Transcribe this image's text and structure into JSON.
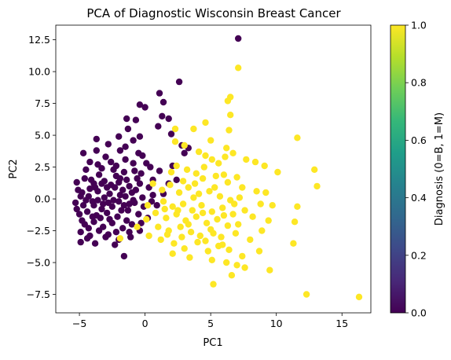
{
  "chart_data": {
    "type": "scatter",
    "title": "PCA of Diagnostic Wisconsin Breast Cancer",
    "xlabel": "PC1",
    "ylabel": "PC2",
    "xlim": [
      -6.8,
      17.2
    ],
    "ylim": [
      -8.95,
      13.65
    ],
    "xticks": [
      -5,
      0,
      5,
      10,
      15
    ],
    "xtick_labels": [
      "−5",
      "0",
      "5",
      "10",
      "15"
    ],
    "yticks": [
      -7.5,
      -5.0,
      -2.5,
      0.0,
      2.5,
      5.0,
      7.5,
      10.0,
      12.5
    ],
    "ytick_labels": [
      "−7.5",
      "−5.0",
      "−2.5",
      "0.0",
      "2.5",
      "5.0",
      "7.5",
      "10.0",
      "12.5"
    ],
    "grid": false,
    "colorbar": {
      "label": "Diagnosis (0=B, 1=M)",
      "range": [
        0.0,
        1.0
      ],
      "ticks": [
        0.0,
        0.2,
        0.4,
        0.6,
        0.8,
        1.0
      ],
      "tick_labels": [
        "0.0",
        "0.2",
        "0.4",
        "0.6",
        "0.8",
        "1.0"
      ],
      "colormap": "viridis",
      "stops": [
        "#440154",
        "#482878",
        "#3e4989",
        "#31688e",
        "#26828e",
        "#1f9e89",
        "#35b779",
        "#6ece58",
        "#b5de2b",
        "#fde725"
      ]
    },
    "series": [
      {
        "class": 0,
        "color": "#440154",
        "points": [
          [
            7.1,
            12.6
          ],
          [
            2.6,
            9.2
          ],
          [
            1.1,
            8.3
          ],
          [
            -0.4,
            7.4
          ],
          [
            0.0,
            7.2
          ],
          [
            1.4,
            7.6
          ],
          [
            1.3,
            6.5
          ],
          [
            1.8,
            6.3
          ],
          [
            -1.4,
            6.3
          ],
          [
            -0.7,
            6.2
          ],
          [
            1.0,
            5.7
          ],
          [
            2.0,
            5.1
          ],
          [
            -1.3,
            5.5
          ],
          [
            -2.0,
            4.9
          ],
          [
            -0.4,
            4.9
          ],
          [
            -0.9,
            4.6
          ],
          [
            -1.5,
            4.1
          ],
          [
            -2.8,
            4.3
          ],
          [
            -3.7,
            4.7
          ],
          [
            -3.7,
            3.8
          ],
          [
            -1.9,
            3.8
          ],
          [
            -1.5,
            3.1
          ],
          [
            -0.2,
            3.4
          ],
          [
            -0.9,
            2.8
          ],
          [
            -2.6,
            2.9
          ],
          [
            -3.0,
            3.3
          ],
          [
            -4.7,
            3.6
          ],
          [
            -4.2,
            2.9
          ],
          [
            -4.5,
            2.3
          ],
          [
            -3.3,
            2.4
          ],
          [
            -2.4,
            2.3
          ],
          [
            -1.6,
            2.1
          ],
          [
            -0.8,
            2.2
          ],
          [
            -0.3,
            2.0
          ],
          [
            0.4,
            2.5
          ],
          [
            0.6,
            1.5
          ],
          [
            1.1,
            2.2
          ],
          [
            2.1,
            2.6
          ],
          [
            2.4,
            1.5
          ],
          [
            2.8,
            4.2
          ],
          [
            3.0,
            3.6
          ],
          [
            3.3,
            4.0
          ],
          [
            -5.2,
            1.3
          ],
          [
            -5.1,
            0.7
          ],
          [
            -4.6,
            1.6
          ],
          [
            -3.9,
            1.2
          ],
          [
            -3.1,
            1.4
          ],
          [
            -2.0,
            1.3
          ],
          [
            -1.2,
            1.0
          ],
          [
            -0.4,
            1.2
          ],
          [
            0.3,
            0.9
          ],
          [
            -4.8,
            0.5
          ],
          [
            -4.3,
            0.2
          ],
          [
            -3.6,
            0.6
          ],
          [
            -2.7,
            0.4
          ],
          [
            -1.9,
            0.3
          ],
          [
            -1.0,
            0.5
          ],
          [
            -0.2,
            0.1
          ],
          [
            0.6,
            0.3
          ],
          [
            -5.3,
            -0.3
          ],
          [
            -4.7,
            -0.5
          ],
          [
            -4.0,
            -0.2
          ],
          [
            -3.2,
            -0.4
          ],
          [
            -2.4,
            -0.1
          ],
          [
            -1.6,
            -0.5
          ],
          [
            -0.8,
            -0.3
          ],
          [
            -0.1,
            -0.6
          ],
          [
            0.5,
            -0.2
          ],
          [
            -5.0,
            -1.2
          ],
          [
            -4.4,
            -1.0
          ],
          [
            -3.7,
            -1.3
          ],
          [
            -2.9,
            -1.1
          ],
          [
            -2.1,
            -1.4
          ],
          [
            -1.3,
            -0.9
          ],
          [
            -0.5,
            -1.2
          ],
          [
            0.2,
            -1.5
          ],
          [
            -4.6,
            -2.0
          ],
          [
            -3.9,
            -1.8
          ],
          [
            -3.2,
            -2.2
          ],
          [
            -2.5,
            -1.9
          ],
          [
            -1.7,
            -2.3
          ],
          [
            -1.0,
            -2.0
          ],
          [
            -4.9,
            -2.6
          ],
          [
            -4.2,
            -2.9
          ],
          [
            -3.5,
            -2.5
          ],
          [
            -2.8,
            -2.8
          ],
          [
            -2.0,
            -3.2
          ],
          [
            -1.2,
            -2.6
          ],
          [
            -4.9,
            -3.4
          ],
          [
            -4.4,
            -3.1
          ],
          [
            -3.8,
            -3.5
          ],
          [
            -2.3,
            -3.6
          ],
          [
            -1.6,
            -4.5
          ],
          [
            -5.2,
            -0.8
          ],
          [
            -3.5,
            1.9
          ],
          [
            -2.2,
            1.8
          ],
          [
            -1.4,
            1.5
          ],
          [
            -0.6,
            1.6
          ],
          [
            -4.1,
            1.5
          ],
          [
            -2.9,
            0.9
          ],
          [
            -1.7,
            0.7
          ],
          [
            -0.9,
            -0.1
          ],
          [
            -4.5,
            -0.1
          ],
          [
            -3.3,
            -0.8
          ],
          [
            -2.5,
            -0.6
          ],
          [
            -1.8,
            -0.9
          ],
          [
            -3.9,
            -0.5
          ],
          [
            -2.7,
            -1.6
          ],
          [
            -4.3,
            -2.3
          ],
          [
            -3.0,
            -3.0
          ],
          [
            -1.4,
            -1.7
          ],
          [
            -0.3,
            -1.9
          ],
          [
            0.9,
            -0.5
          ],
          [
            1.4,
            0.4
          ],
          [
            1.8,
            1.2
          ],
          [
            0.1,
            2.8
          ],
          [
            -0.5,
            3.6
          ],
          [
            -2.2,
            2.6
          ],
          [
            -3.6,
            2.7
          ],
          [
            -4.0,
            -1.4
          ],
          [
            -4.8,
            -1.7
          ],
          [
            -3.4,
            -1.5
          ],
          [
            -2.2,
            -2.6
          ],
          [
            -1.1,
            -3.0
          ],
          [
            -0.4,
            -2.5
          ],
          [
            -3.1,
            0.1
          ],
          [
            -2.3,
            0.9
          ],
          [
            -1.5,
            0.2
          ],
          [
            -0.7,
            0.7
          ],
          [
            -3.8,
            0.9
          ],
          [
            -4.9,
            0.2
          ],
          [
            -2.8,
            -0.3
          ],
          [
            -2.0,
            -0.2
          ],
          [
            -1.2,
            -0.4
          ],
          [
            -3.6,
            -0.1
          ],
          [
            -2.6,
            1.1
          ],
          [
            -1.9,
            1.6
          ],
          [
            -3.3,
            1.2
          ],
          [
            -4.2,
            0.8
          ]
        ]
      },
      {
        "class": 1,
        "color": "#fde725",
        "points": [
          [
            7.1,
            10.3
          ],
          [
            6.5,
            8.0
          ],
          [
            6.3,
            7.7
          ],
          [
            4.6,
            6.0
          ],
          [
            6.5,
            6.6
          ],
          [
            6.4,
            5.4
          ],
          [
            2.3,
            5.5
          ],
          [
            3.7,
            5.5
          ],
          [
            2.3,
            4.5
          ],
          [
            6.2,
            4.0
          ],
          [
            6.7,
            3.6
          ],
          [
            11.6,
            4.8
          ],
          [
            5.0,
            4.6
          ],
          [
            3.0,
            4.2
          ],
          [
            4.1,
            3.7
          ],
          [
            4.6,
            3.4
          ],
          [
            5.1,
            3.1
          ],
          [
            5.6,
            2.8
          ],
          [
            6.1,
            3.3
          ],
          [
            7.7,
            3.1
          ],
          [
            8.4,
            2.9
          ],
          [
            9.1,
            2.6
          ],
          [
            10.1,
            2.1
          ],
          [
            12.9,
            2.3
          ],
          [
            13.1,
            1.0
          ],
          [
            2.4,
            2.6
          ],
          [
            3.2,
            2.3
          ],
          [
            3.9,
            2.0
          ],
          [
            4.4,
            1.6
          ],
          [
            5.4,
            1.8
          ],
          [
            6.3,
            1.3
          ],
          [
            7.0,
            1.7
          ],
          [
            7.4,
            0.9
          ],
          [
            8.5,
            0.6
          ],
          [
            9.2,
            0.5
          ],
          [
            1.9,
            1.1
          ],
          [
            2.6,
            0.5
          ],
          [
            3.3,
            0.9
          ],
          [
            4.1,
            0.4
          ],
          [
            4.9,
            0.6
          ],
          [
            5.7,
            0.2
          ],
          [
            6.5,
            -0.1
          ],
          [
            7.2,
            0.1
          ],
          [
            8.8,
            -0.4
          ],
          [
            9.7,
            -0.5
          ],
          [
            11.6,
            -0.6
          ],
          [
            1.4,
            -0.2
          ],
          [
            2.1,
            -0.6
          ],
          [
            2.9,
            -0.4
          ],
          [
            3.6,
            -0.9
          ],
          [
            4.3,
            -0.5
          ],
          [
            5.1,
            -1.0
          ],
          [
            5.9,
            -0.7
          ],
          [
            6.7,
            -1.2
          ],
          [
            7.6,
            -0.9
          ],
          [
            8.2,
            -1.4
          ],
          [
            9.4,
            -1.7
          ],
          [
            11.4,
            -1.8
          ],
          [
            0.2,
            -0.5
          ],
          [
            0.8,
            -1.1
          ],
          [
            1.6,
            -1.5
          ],
          [
            2.4,
            -1.2
          ],
          [
            3.1,
            -1.7
          ],
          [
            3.9,
            -1.4
          ],
          [
            4.7,
            -1.9
          ],
          [
            5.5,
            -1.6
          ],
          [
            6.3,
            -2.1
          ],
          [
            7.1,
            -2.0
          ],
          [
            8.9,
            -2.5
          ],
          [
            1.0,
            -2.2
          ],
          [
            1.8,
            -2.5
          ],
          [
            2.7,
            -2.2
          ],
          [
            3.5,
            -2.6
          ],
          [
            4.2,
            -2.9
          ],
          [
            5.0,
            -2.4
          ],
          [
            5.8,
            -3.0
          ],
          [
            6.9,
            -2.7
          ],
          [
            8.0,
            -3.2
          ],
          [
            11.3,
            -3.5
          ],
          [
            0.3,
            -2.9
          ],
          [
            1.2,
            -3.2
          ],
          [
            2.2,
            -3.5
          ],
          [
            3.0,
            -3.9
          ],
          [
            4.0,
            -3.4
          ],
          [
            4.8,
            -4.1
          ],
          [
            5.6,
            -3.7
          ],
          [
            6.4,
            -4.0
          ],
          [
            7.4,
            -4.5
          ],
          [
            8.7,
            -4.1
          ],
          [
            2.1,
            -4.3
          ],
          [
            3.4,
            -4.6
          ],
          [
            5.1,
            -4.8
          ],
          [
            6.2,
            -5.0
          ],
          [
            7.0,
            -5.2
          ],
          [
            7.6,
            -5.4
          ],
          [
            9.5,
            -5.6
          ],
          [
            6.6,
            -6.0
          ],
          [
            5.2,
            -6.7
          ],
          [
            12.3,
            -7.5
          ],
          [
            16.3,
            -7.7
          ],
          [
            -1.9,
            -3.1
          ],
          [
            -0.6,
            -2.2
          ],
          [
            0.1,
            -1.6
          ],
          [
            0.6,
            1.2
          ],
          [
            1.3,
            0.7
          ],
          [
            2.0,
            2.1
          ],
          [
            2.9,
            1.4
          ],
          [
            3.8,
            1.2
          ],
          [
            4.5,
            2.5
          ],
          [
            5.3,
            0.9
          ],
          [
            6.0,
            1.9
          ],
          [
            6.8,
            -0.4
          ],
          [
            1.5,
            -0.8
          ],
          [
            2.5,
            -0.9
          ],
          [
            3.3,
            -2.0
          ],
          [
            4.4,
            -1.1
          ],
          [
            5.2,
            -2.7
          ],
          [
            6.0,
            -1.3
          ],
          [
            3.7,
            0.1
          ],
          [
            2.8,
            -3.0
          ],
          [
            1.7,
            -2.8
          ],
          [
            4.6,
            -3.3
          ],
          [
            5.9,
            -3.6
          ]
        ]
      }
    ]
  }
}
